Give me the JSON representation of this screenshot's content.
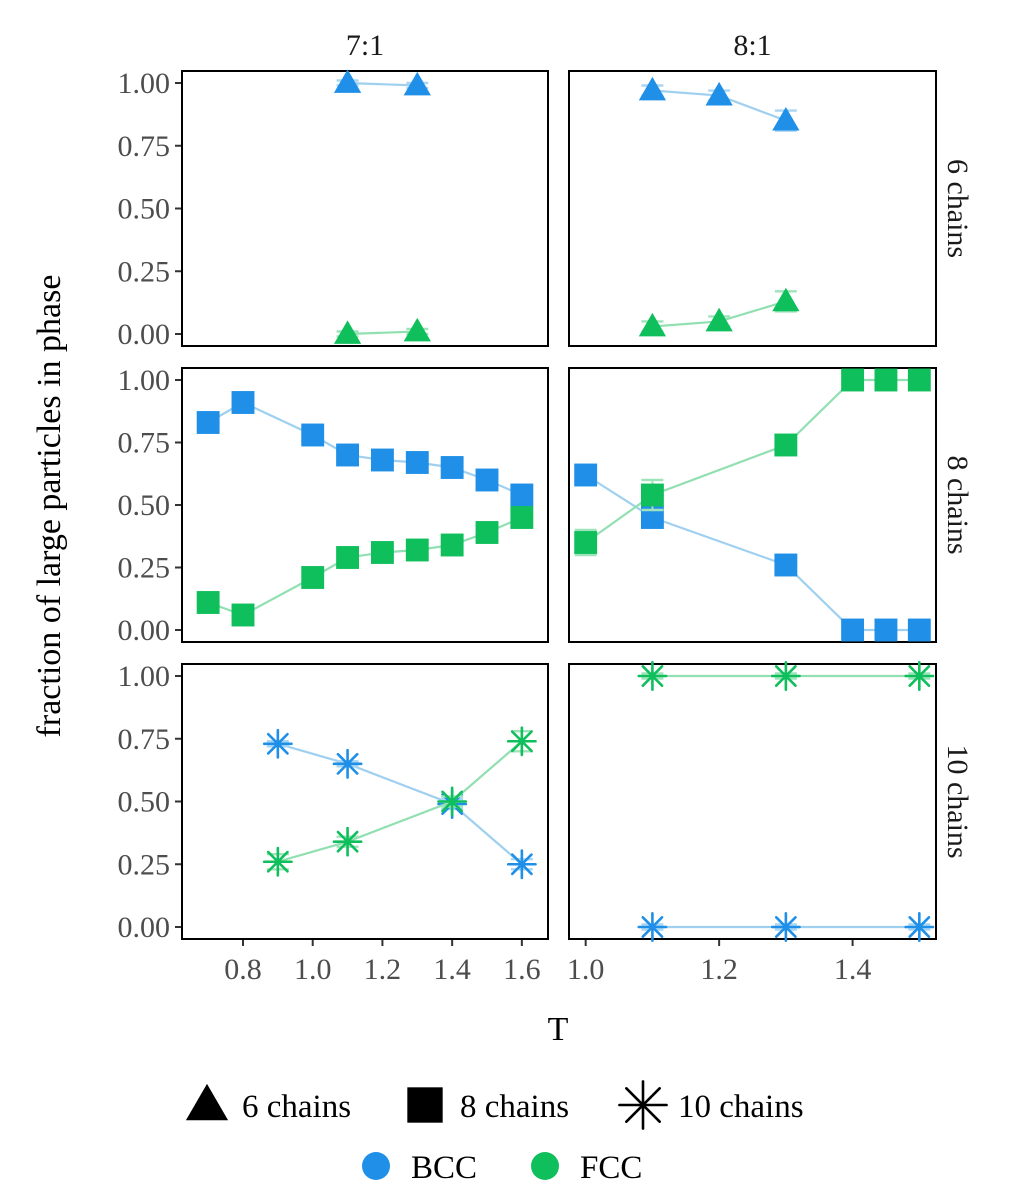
{
  "chart_data": {
    "type": "line",
    "ylabel": "fraction of large particles in phase",
    "xlabel": "T",
    "columns": [
      "7:1",
      "8:1"
    ],
    "rows": [
      "6 chains",
      "8 chains",
      "10 chains"
    ],
    "ylim": [
      0,
      1
    ],
    "yticks": [
      0,
      0.25,
      0.5,
      0.75,
      1
    ],
    "ytick_labels": [
      "0.00",
      "0.25",
      "0.50",
      "0.75",
      "1.00"
    ],
    "xaxes": [
      {
        "column": "7:1",
        "xlim": [
          0.625,
          1.675
        ],
        "ticks": [
          0.8,
          1.0,
          1.2,
          1.4,
          1.6
        ],
        "tick_labels": [
          "0.8",
          "1.0",
          "1.2",
          "1.4",
          "1.6"
        ]
      },
      {
        "column": "8:1",
        "xlim": [
          0.975,
          1.525
        ],
        "ticks": [
          1.0,
          1.2,
          1.4
        ],
        "tick_labels": [
          "1.0",
          "1.2",
          "1.4"
        ]
      }
    ],
    "colors": {
      "BCC": "#1f8fe8",
      "FCC": "#0fbf5c",
      "BCC_line": "#9fd0ef",
      "FCC_line": "#92dfb1",
      "BCC_err": "#a9d6f3",
      "FCC_err": "#9fe3bb"
    },
    "legend": {
      "shapes": [
        {
          "label": "6 chains",
          "marker": "triangle"
        },
        {
          "label": "8 chains",
          "marker": "square"
        },
        {
          "label": "10 chains",
          "marker": "asterisk"
        }
      ],
      "colors": [
        {
          "label": "BCC",
          "color": "#1f8fe8"
        },
        {
          "label": "FCC",
          "color": "#0fbf5c"
        }
      ]
    },
    "panels": [
      {
        "row": "6 chains",
        "column": "7:1",
        "marker": "triangle",
        "series": [
          {
            "name": "BCC",
            "x": [
              1.1,
              1.3
            ],
            "y": [
              1.0,
              0.99
            ],
            "err": [
              0.01,
              0.01
            ]
          },
          {
            "name": "FCC",
            "x": [
              1.1,
              1.3
            ],
            "y": [
              0.0,
              0.01
            ],
            "err": [
              0.01,
              0.01
            ]
          }
        ]
      },
      {
        "row": "6 chains",
        "column": "8:1",
        "marker": "triangle",
        "series": [
          {
            "name": "BCC",
            "x": [
              1.1,
              1.2,
              1.3
            ],
            "y": [
              0.97,
              0.95,
              0.85
            ],
            "err": [
              0.02,
              0.02,
              0.04
            ]
          },
          {
            "name": "FCC",
            "x": [
              1.1,
              1.2,
              1.3
            ],
            "y": [
              0.03,
              0.05,
              0.13
            ],
            "err": [
              0.02,
              0.02,
              0.04
            ]
          }
        ]
      },
      {
        "row": "8 chains",
        "column": "7:1",
        "marker": "square",
        "series": [
          {
            "name": "BCC",
            "x": [
              0.7,
              0.8,
              1.0,
              1.1,
              1.2,
              1.3,
              1.4,
              1.5,
              1.6
            ],
            "y": [
              0.83,
              0.91,
              0.78,
              0.7,
              0.68,
              0.67,
              0.65,
              0.6,
              0.54
            ],
            "err": [
              0.01,
              0.01,
              0.01,
              0.01,
              0.01,
              0.01,
              0.01,
              0.01,
              0.02
            ]
          },
          {
            "name": "FCC",
            "x": [
              0.7,
              0.8,
              1.0,
              1.1,
              1.2,
              1.3,
              1.4,
              1.5,
              1.6
            ],
            "y": [
              0.11,
              0.06,
              0.21,
              0.29,
              0.31,
              0.32,
              0.34,
              0.39,
              0.45
            ],
            "err": [
              0.01,
              0.01,
              0.01,
              0.01,
              0.01,
              0.01,
              0.01,
              0.01,
              0.03
            ]
          }
        ]
      },
      {
        "row": "8 chains",
        "column": "8:1",
        "marker": "square",
        "series": [
          {
            "name": "BCC",
            "x": [
              1.0,
              1.1,
              1.3,
              1.4,
              1.45,
              1.5
            ],
            "y": [
              0.62,
              0.45,
              0.26,
              0.0,
              0.0,
              0.0
            ],
            "err": [
              0.03,
              0.03,
              0.02,
              0.01,
              0.01,
              0.01
            ]
          },
          {
            "name": "FCC",
            "x": [
              1.0,
              1.1,
              1.3,
              1.4,
              1.45,
              1.5
            ],
            "y": [
              0.35,
              0.54,
              0.74,
              1.0,
              1.0,
              1.0
            ],
            "err": [
              0.05,
              0.06,
              0.04,
              0.01,
              0.01,
              0.01
            ]
          }
        ]
      },
      {
        "row": "10 chains",
        "column": "7:1",
        "marker": "asterisk",
        "series": [
          {
            "name": "BCC",
            "x": [
              0.9,
              1.1,
              1.4,
              1.6
            ],
            "y": [
              0.73,
              0.65,
              0.49,
              0.25
            ],
            "err": [
              0.01,
              0.01,
              0.02,
              0.02
            ]
          },
          {
            "name": "FCC",
            "x": [
              0.9,
              1.1,
              1.4,
              1.6
            ],
            "y": [
              0.26,
              0.34,
              0.5,
              0.74
            ],
            "err": [
              0.03,
              0.02,
              0.02,
              0.04
            ]
          }
        ]
      },
      {
        "row": "10 chains",
        "column": "8:1",
        "marker": "asterisk",
        "series": [
          {
            "name": "BCC",
            "x": [
              1.1,
              1.3,
              1.5
            ],
            "y": [
              0.0,
              0.0,
              0.0
            ],
            "err": [
              0.01,
              0.01,
              0.01
            ]
          },
          {
            "name": "FCC",
            "x": [
              1.1,
              1.3,
              1.5
            ],
            "y": [
              1.0,
              1.0,
              1.0
            ],
            "err": [
              0.01,
              0.01,
              0.01
            ]
          }
        ]
      }
    ]
  }
}
